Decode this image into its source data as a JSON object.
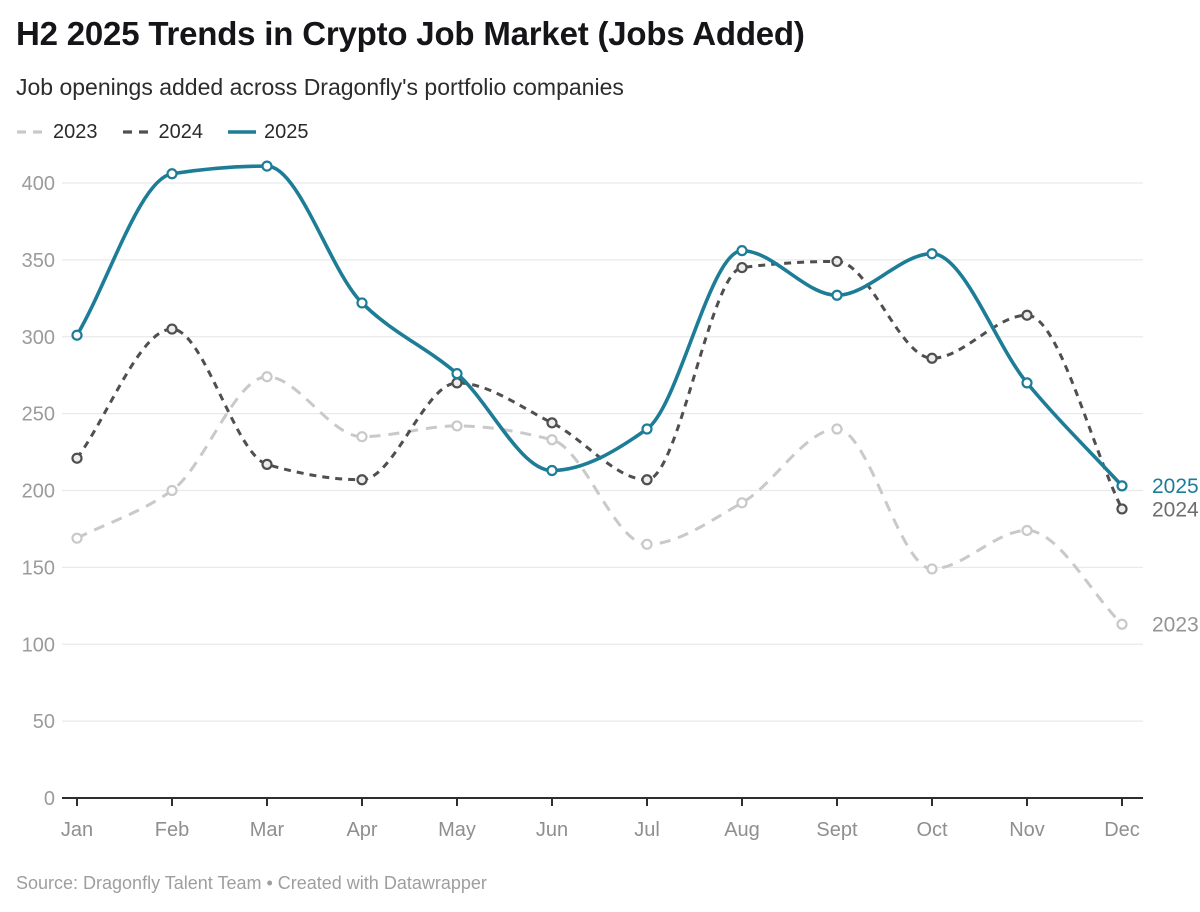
{
  "header": {
    "title": "H2 2025 Trends in Crypto Job Market (Jobs Added)",
    "subtitle": "Job openings added across Dragonfly's portfolio companies"
  },
  "footer": {
    "source": "Source: Dragonfly Talent Team • Created with Datawrapper"
  },
  "chart_data": {
    "type": "line",
    "title": "H2 2025 Trends in Crypto Job Market (Jobs Added)",
    "subtitle": "Job openings added across Dragonfly's portfolio companies",
    "xlabel": "",
    "ylabel": "",
    "categories": [
      "Jan",
      "Feb",
      "Mar",
      "Apr",
      "May",
      "Jun",
      "Jul",
      "Aug",
      "Sept",
      "Oct",
      "Nov",
      "Dec"
    ],
    "ylim": [
      0,
      420
    ],
    "yticks": [
      0,
      50,
      100,
      150,
      200,
      250,
      300,
      350,
      400
    ],
    "grid": "horizontal",
    "legend_position": "top-left",
    "series": [
      {
        "name": "2023",
        "style": "dashed-long",
        "color": "#c9c9c9",
        "marker_fill": "#ffffff",
        "end_label_color": "#949494",
        "values": [
          169,
          200,
          274,
          235,
          242,
          233,
          165,
          192,
          240,
          149,
          174,
          113
        ]
      },
      {
        "name": "2024",
        "style": "dashed-short",
        "color": "#4f4f4f",
        "marker_fill": "#ededed",
        "end_label_color": "#6d6d6d",
        "values": [
          221,
          305,
          217,
          207,
          270,
          244,
          207,
          345,
          349,
          286,
          314,
          188
        ]
      },
      {
        "name": "2025",
        "style": "solid",
        "color": "#1d7d97",
        "marker_fill": "#ffffff",
        "end_label_color": "#1d7d97",
        "values": [
          301,
          406,
          411,
          322,
          276,
          213,
          240,
          356,
          327,
          354,
          270,
          203
        ]
      }
    ],
    "palette": {
      "grid": "#eaeaea",
      "axis": "#2e2e2e",
      "tick_text": "#9b9b9b",
      "month_text": "#8f8f8f"
    }
  }
}
